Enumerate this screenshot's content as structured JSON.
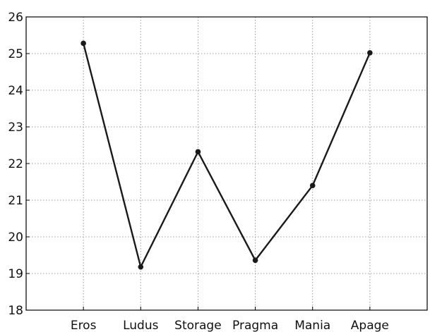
{
  "chart_data": {
    "type": "line",
    "categories": [
      "Eros",
      "Ludus",
      "Storage",
      "Pragma",
      "Mania",
      "Apage"
    ],
    "series": [
      {
        "values": [
          25.28,
          19.18,
          22.32,
          19.36,
          21.4,
          25.02
        ],
        "color": "#1a1a1a"
      }
    ],
    "ylim": [
      18,
      26
    ],
    "yticks": [
      18,
      19,
      20,
      21,
      22,
      23,
      24,
      25,
      26
    ],
    "grid": true,
    "title": "",
    "xlabel": "",
    "ylabel": ""
  }
}
